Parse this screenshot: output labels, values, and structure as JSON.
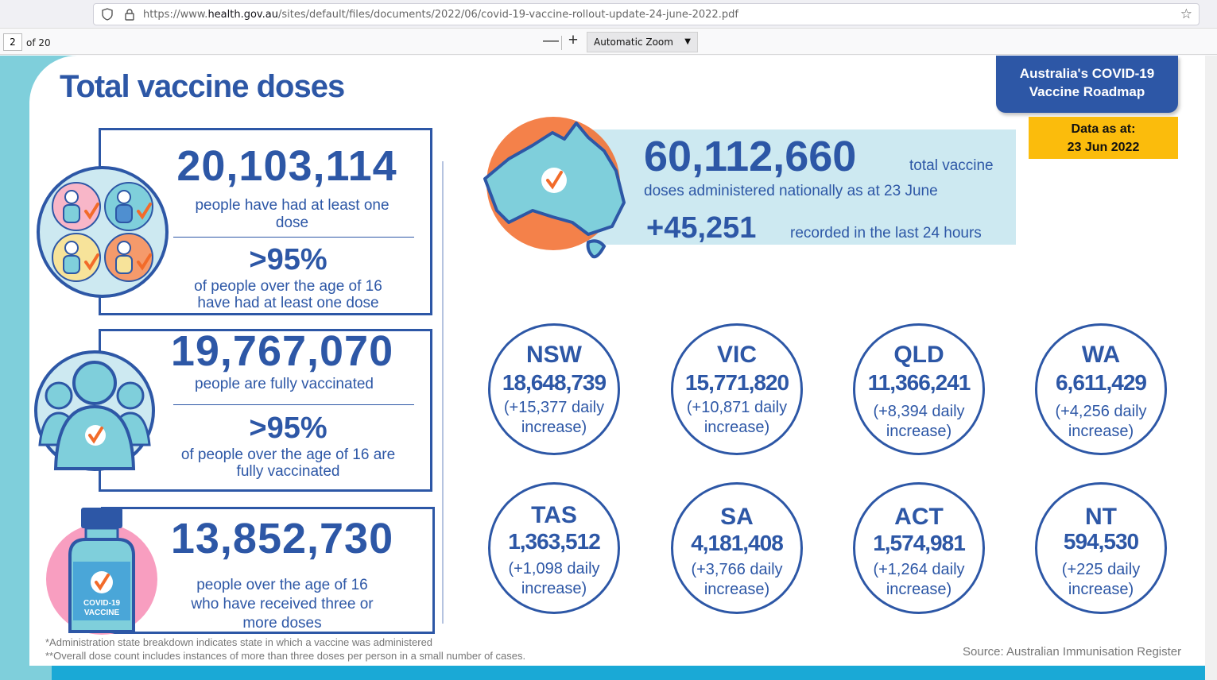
{
  "browser": {
    "url_prefix": "https://www.",
    "url_domain": "health.gov.au",
    "url_path": "/sites/default/files/documents/2022/06/covid-19-vaccine-rollout-update-24-june-2022.pdf",
    "page_current": "2",
    "page_of": "of 20",
    "zoom_out": "—",
    "zoom_in": "+",
    "zoom_label": "Automatic Zoom"
  },
  "doc": {
    "title": "Total vaccine doses",
    "roadmap_line1": "Australia's COVID-19",
    "roadmap_line2": "Vaccine Roadmap",
    "data_as_at_line1": "Data as at:",
    "data_as_at_line2": "23 Jun 2022",
    "stats": {
      "one_dose_num": "20,103,114",
      "one_dose_line1": "people have had at least one",
      "one_dose_line2": "dose",
      "one_dose_pct": ">95%",
      "one_dose_pct_line1": "of people over the age of 16",
      "one_dose_pct_line2": "have had at least one dose",
      "full_num": "19,767,070",
      "full_line1": "people are fully vaccinated",
      "full_pct": ">95%",
      "full_pct_line1": "of people over the age of 16 are",
      "full_pct_line2": "fully vaccinated",
      "three_num": "13,852,730",
      "three_line1": "people over the age of 16",
      "three_line2": "who have received three or",
      "three_line3": "more doses",
      "vial_label1": "COVID-19",
      "vial_label2": "VACCINE"
    },
    "total": {
      "number": "60,112,660",
      "suffix": "total vaccine",
      "line2": "doses administered nationally as at 23 June",
      "increase": "+45,251",
      "increase_text": "recorded in the last 24 hours"
    },
    "states": [
      {
        "name": "NSW",
        "total": "18,648,739",
        "inc1": "(+15,377 daily",
        "inc2": "increase)"
      },
      {
        "name": "VIC",
        "total": "15,771,820",
        "inc1": "(+10,871 daily",
        "inc2": "increase)"
      },
      {
        "name": "QLD",
        "total": "11,366,241",
        "inc1": "(+8,394 daily",
        "inc2": "increase)"
      },
      {
        "name": "WA",
        "total": "6,611,429",
        "inc1": "(+4,256 daily",
        "inc2": "increase)"
      },
      {
        "name": "TAS",
        "total": "1,363,512",
        "inc1": "(+1,098 daily",
        "inc2": "increase)"
      },
      {
        "name": "SA",
        "total": "4,181,408",
        "inc1": "(+3,766 daily",
        "inc2": "increase)"
      },
      {
        "name": "ACT",
        "total": "1,574,981",
        "inc1": "(+1,264 daily",
        "inc2": "increase)"
      },
      {
        "name": "NT",
        "total": "594,530",
        "inc1": "(+225 daily",
        "inc2": "increase)"
      }
    ],
    "footnote1": "*Administration state breakdown indicates state in which a vaccine was administered",
    "footnote2": "**Overall dose count includes instances of more than three doses per person in a small number of cases.",
    "source": "Source: Australian Immunisation Register"
  },
  "colors": {
    "brand_blue": "#2d57a6",
    "accent_orange": "#f26b2a",
    "panel_teal": "#cde9f1",
    "data_badge": "#fbbc0c"
  }
}
